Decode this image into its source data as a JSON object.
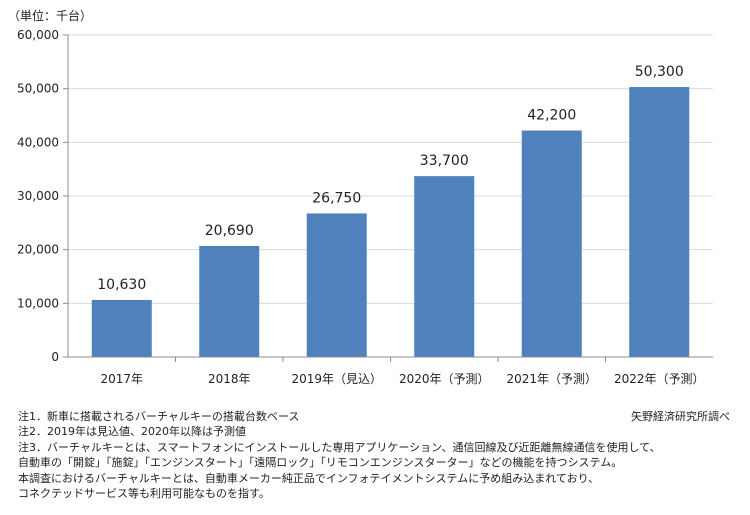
{
  "chart_data": {
    "type": "bar",
    "unit_label": "（単位：千台）",
    "categories": [
      "2017年",
      "2018年",
      "2019年（見込）",
      "2020年（予測）",
      "2021年（予測）",
      "2022年（予測）"
    ],
    "values": [
      10630,
      20690,
      26750,
      33700,
      42200,
      50300
    ],
    "data_labels": [
      "10,630",
      "20,690",
      "26,750",
      "33,700",
      "42,200",
      "50,300"
    ],
    "ylim": [
      0,
      60000
    ],
    "yticks": [
      0,
      10000,
      20000,
      30000,
      40000,
      50000,
      60000
    ],
    "ytick_labels": [
      "0",
      "10,000",
      "20,000",
      "30,000",
      "40,000",
      "50,000",
      "60,000"
    ],
    "grid": true,
    "bar_color": "#4f81bd",
    "grid_color": "#d9d9d9"
  },
  "notes": [
    "注1．新車に搭載されるバーチャルキーの搭載台数ベース",
    "注2．2019年は見込値、2020年以降は予測値",
    "注3．バーチャルキーとは、スマートフォンにインストールした専用アプリケーション、通信回線及び近距離無線通信を使用して、",
    "自動車の「開錠」「施錠」「エンジンスタート」「遠隔ロック」「リモコンエンジンスターター」などの機能を持つシステム。",
    "本調査におけるバーチャルキーとは、自動車メーカー純正品でインフォテイメントシステムに予め組み込まれており、",
    "コネクテッドサービス等も利用可能なものを指す。"
  ],
  "source": "矢野経済研究所調べ"
}
